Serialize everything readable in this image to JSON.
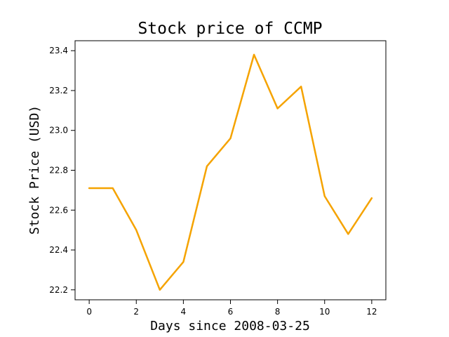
{
  "chart_data": {
    "type": "line",
    "title": "Stock price of CCMP",
    "xlabel": "Days since 2008-03-25",
    "ylabel": "Stock Price (USD)",
    "xlim": [
      -0.6,
      12.6
    ],
    "ylim": [
      22.15,
      23.45
    ],
    "x_ticks": [
      0,
      2,
      4,
      6,
      8,
      10,
      12
    ],
    "x_tick_labels": [
      "0",
      "2",
      "4",
      "6",
      "8",
      "10",
      "12"
    ],
    "y_ticks": [
      22.2,
      22.4,
      22.6,
      22.8,
      23.0,
      23.2,
      23.4
    ],
    "y_tick_labels": [
      "22.2",
      "22.4",
      "22.6",
      "22.8",
      "23.0",
      "23.2",
      "23.4"
    ],
    "grid": false,
    "legend": "none",
    "series": [
      {
        "color": "#f5a300",
        "x": [
          0,
          1,
          2,
          3,
          4,
          5,
          6,
          7,
          8,
          9,
          10,
          11,
          12
        ],
        "y": [
          22.71,
          22.71,
          22.5,
          22.2,
          22.34,
          22.82,
          22.96,
          23.38,
          23.11,
          23.22,
          22.67,
          22.48,
          22.66
        ]
      }
    ]
  }
}
